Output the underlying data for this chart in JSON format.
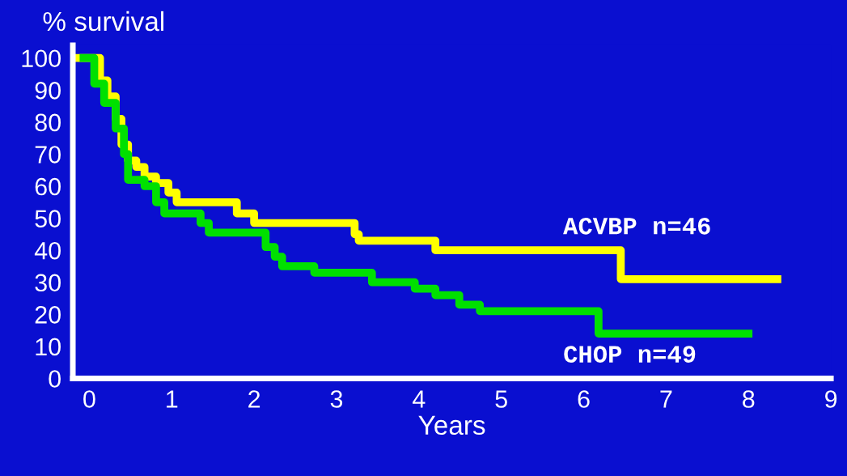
{
  "chart_data": {
    "type": "step",
    "ylabel": "% survival",
    "xlabel": "Years",
    "xlim": [
      -0.2,
      9
    ],
    "ylim": [
      0,
      104
    ],
    "xticks": [
      0,
      1,
      2,
      3,
      4,
      5,
      6,
      7,
      8,
      9
    ],
    "yticks": [
      0,
      10,
      20,
      30,
      40,
      50,
      60,
      70,
      80,
      90,
      100
    ],
    "grid": false,
    "legend": false,
    "series": [
      {
        "name": "ACVBP n=46",
        "color": "#ffff00",
        "x": [
          -0.2,
          0.13,
          0.22,
          0.32,
          0.39,
          0.47,
          0.57,
          0.67,
          0.81,
          0.96,
          1.06,
          1.79,
          2.0,
          3.22,
          3.27,
          3.4,
          4.2,
          6.45,
          8.35
        ],
        "values": [
          100,
          93,
          88,
          81,
          73,
          68,
          66,
          63,
          61,
          58,
          55,
          51.5,
          48.5,
          45,
          43,
          43,
          40,
          31,
          31
        ]
      },
      {
        "name": "CHOP n=49",
        "color": "#00e000",
        "x": [
          -0.07,
          0.06,
          0.18,
          0.32,
          0.42,
          0.47,
          0.67,
          0.81,
          0.91,
          1.35,
          1.45,
          2.14,
          2.25,
          2.34,
          2.73,
          3.43,
          3.95,
          4.2,
          4.49,
          4.74,
          6.18,
          8.0
        ],
        "values": [
          100,
          92,
          86,
          78,
          70,
          62,
          60,
          55,
          51.5,
          48.5,
          45.5,
          41,
          38,
          35,
          33,
          30,
          28,
          26,
          23,
          21,
          14,
          14
        ]
      }
    ]
  }
}
